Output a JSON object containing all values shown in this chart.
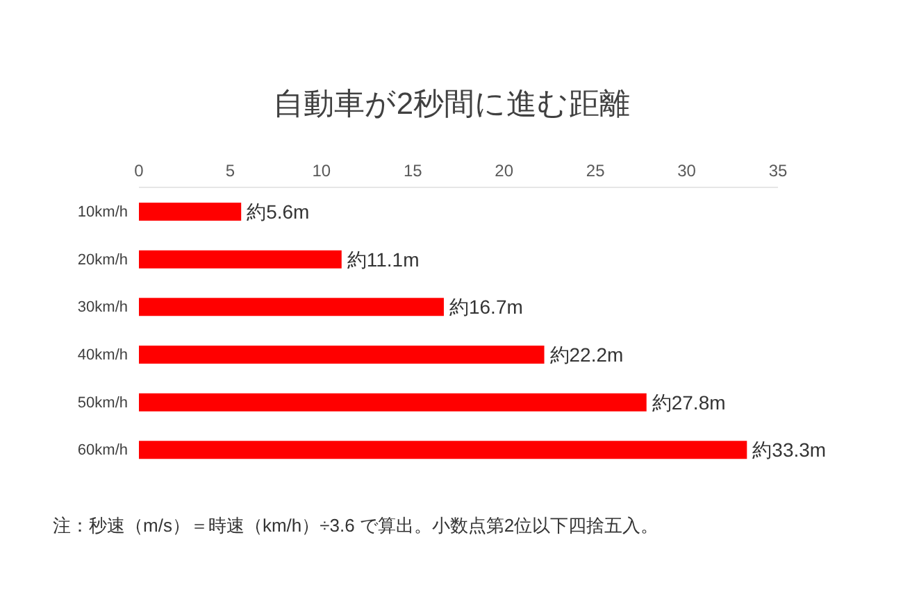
{
  "chart_data": {
    "type": "bar",
    "orientation": "horizontal",
    "title": "自動車が2秒間に進む距離",
    "categories": [
      "10km/h",
      "20km/h",
      "30km/h",
      "40km/h",
      "50km/h",
      "60km/h"
    ],
    "values": [
      5.6,
      11.1,
      16.7,
      22.2,
      27.8,
      33.3
    ],
    "value_labels": [
      "約5.6m",
      "約11.1m",
      "約16.7m",
      "約22.2m",
      "約27.8m",
      "約33.3m"
    ],
    "color": "#ff0000",
    "xlim": [
      0,
      35
    ],
    "xticks": [
      0,
      5,
      10,
      15,
      20,
      25,
      30,
      35
    ],
    "grid": false,
    "annotations": [
      "注：秒速（m/s）＝時速（km/h）÷3.6 で算出。小数点第2位以下四捨五入。"
    ]
  }
}
